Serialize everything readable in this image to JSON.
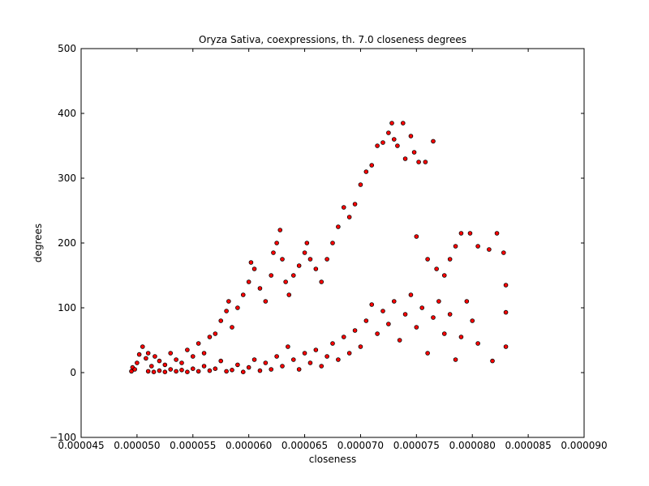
{
  "chart_data": {
    "type": "scatter",
    "title": "Oryza Sativa, coexpressions, th. 7.0 closeness degrees",
    "xlabel": "closeness",
    "ylabel": "degrees",
    "xlim": [
      4.5e-05,
      9e-05
    ],
    "ylim": [
      -100,
      500
    ],
    "x_ticks": [
      4.5e-05,
      5e-05,
      5.5e-05,
      6e-05,
      6.5e-05,
      7e-05,
      7.5e-05,
      8e-05,
      8.5e-05,
      9e-05
    ],
    "x_tick_labels": [
      "0.000045",
      "0.000050",
      "0.000055",
      "0.000060",
      "0.000065",
      "0.000070",
      "0.000075",
      "0.000080",
      "0.000085",
      "0.000090"
    ],
    "y_ticks": [
      -100,
      0,
      100,
      200,
      300,
      400,
      500
    ],
    "y_tick_labels": [
      "−100",
      "0",
      "100",
      "200",
      "300",
      "400",
      "500"
    ],
    "grid": false,
    "legend": "none",
    "marker_color": "#ff0000",
    "marker_edge_color": "#000000",
    "points": [
      {
        "x": 4.95e-05,
        "y": 2
      },
      {
        "x": 4.96e-05,
        "y": 8
      },
      {
        "x": 4.98e-05,
        "y": 5
      },
      {
        "x": 5e-05,
        "y": 15
      },
      {
        "x": 5.02e-05,
        "y": 28
      },
      {
        "x": 5.05e-05,
        "y": 40
      },
      {
        "x": 5.08e-05,
        "y": 22
      },
      {
        "x": 5.1e-05,
        "y": 30
      },
      {
        "x": 5.13e-05,
        "y": 10
      },
      {
        "x": 5.16e-05,
        "y": 25
      },
      {
        "x": 5.2e-05,
        "y": 18
      },
      {
        "x": 5.25e-05,
        "y": 12
      },
      {
        "x": 5.3e-05,
        "y": 30
      },
      {
        "x": 5.35e-05,
        "y": 20
      },
      {
        "x": 5.4e-05,
        "y": 15
      },
      {
        "x": 5.45e-05,
        "y": 35
      },
      {
        "x": 5.5e-05,
        "y": 25
      },
      {
        "x": 5.55e-05,
        "y": 45
      },
      {
        "x": 5.6e-05,
        "y": 30
      },
      {
        "x": 5.65e-05,
        "y": 55
      },
      {
        "x": 5.7e-05,
        "y": 60
      },
      {
        "x": 5.75e-05,
        "y": 80
      },
      {
        "x": 5.8e-05,
        "y": 95
      },
      {
        "x": 5.82e-05,
        "y": 110
      },
      {
        "x": 5.85e-05,
        "y": 70
      },
      {
        "x": 5.9e-05,
        "y": 100
      },
      {
        "x": 5.95e-05,
        "y": 120
      },
      {
        "x": 6e-05,
        "y": 140
      },
      {
        "x": 6.02e-05,
        "y": 170
      },
      {
        "x": 6.05e-05,
        "y": 160
      },
      {
        "x": 6.1e-05,
        "y": 130
      },
      {
        "x": 6.15e-05,
        "y": 110
      },
      {
        "x": 6.2e-05,
        "y": 150
      },
      {
        "x": 6.22e-05,
        "y": 185
      },
      {
        "x": 6.25e-05,
        "y": 200
      },
      {
        "x": 6.28e-05,
        "y": 220
      },
      {
        "x": 6.3e-05,
        "y": 175
      },
      {
        "x": 6.33e-05,
        "y": 140
      },
      {
        "x": 6.36e-05,
        "y": 120
      },
      {
        "x": 6.4e-05,
        "y": 150
      },
      {
        "x": 6.45e-05,
        "y": 165
      },
      {
        "x": 6.5e-05,
        "y": 185
      },
      {
        "x": 6.52e-05,
        "y": 200
      },
      {
        "x": 6.55e-05,
        "y": 175
      },
      {
        "x": 6.6e-05,
        "y": 160
      },
      {
        "x": 6.65e-05,
        "y": 140
      },
      {
        "x": 6.7e-05,
        "y": 175
      },
      {
        "x": 6.75e-05,
        "y": 200
      },
      {
        "x": 6.8e-05,
        "y": 225
      },
      {
        "x": 6.85e-05,
        "y": 255
      },
      {
        "x": 6.9e-05,
        "y": 240
      },
      {
        "x": 6.95e-05,
        "y": 260
      },
      {
        "x": 7e-05,
        "y": 290
      },
      {
        "x": 7.05e-05,
        "y": 310
      },
      {
        "x": 7.1e-05,
        "y": 320
      },
      {
        "x": 7.15e-05,
        "y": 350
      },
      {
        "x": 7.2e-05,
        "y": 355
      },
      {
        "x": 7.25e-05,
        "y": 370
      },
      {
        "x": 7.28e-05,
        "y": 385
      },
      {
        "x": 7.3e-05,
        "y": 360
      },
      {
        "x": 7.33e-05,
        "y": 350
      },
      {
        "x": 7.38e-05,
        "y": 385
      },
      {
        "x": 7.4e-05,
        "y": 330
      },
      {
        "x": 7.45e-05,
        "y": 365
      },
      {
        "x": 7.48e-05,
        "y": 340
      },
      {
        "x": 7.52e-05,
        "y": 325
      },
      {
        "x": 7.58e-05,
        "y": 325
      },
      {
        "x": 7.65e-05,
        "y": 357
      },
      {
        "x": 7.5e-05,
        "y": 210
      },
      {
        "x": 7.6e-05,
        "y": 175
      },
      {
        "x": 7.68e-05,
        "y": 160
      },
      {
        "x": 7.75e-05,
        "y": 150
      },
      {
        "x": 7.8e-05,
        "y": 175
      },
      {
        "x": 7.85e-05,
        "y": 195
      },
      {
        "x": 7.9e-05,
        "y": 215
      },
      {
        "x": 7.98e-05,
        "y": 215
      },
      {
        "x": 8.05e-05,
        "y": 195
      },
      {
        "x": 8.15e-05,
        "y": 190
      },
      {
        "x": 8.22e-05,
        "y": 215
      },
      {
        "x": 8.28e-05,
        "y": 185
      },
      {
        "x": 8.3e-05,
        "y": 135
      },
      {
        "x": 8.3e-05,
        "y": 93
      },
      {
        "x": 8.3e-05,
        "y": 40
      },
      {
        "x": 8.18e-05,
        "y": 18
      },
      {
        "x": 8.05e-05,
        "y": 45
      },
      {
        "x": 8e-05,
        "y": 80
      },
      {
        "x": 7.95e-05,
        "y": 110
      },
      {
        "x": 7.9e-05,
        "y": 55
      },
      {
        "x": 7.85e-05,
        "y": 20
      },
      {
        "x": 7.8e-05,
        "y": 90
      },
      {
        "x": 7.75e-05,
        "y": 60
      },
      {
        "x": 7.7e-05,
        "y": 110
      },
      {
        "x": 7.65e-05,
        "y": 85
      },
      {
        "x": 7.6e-05,
        "y": 30
      },
      {
        "x": 7.55e-05,
        "y": 100
      },
      {
        "x": 7.5e-05,
        "y": 70
      },
      {
        "x": 7.45e-05,
        "y": 120
      },
      {
        "x": 7.4e-05,
        "y": 90
      },
      {
        "x": 7.35e-05,
        "y": 50
      },
      {
        "x": 7.3e-05,
        "y": 110
      },
      {
        "x": 7.25e-05,
        "y": 75
      },
      {
        "x": 7.2e-05,
        "y": 95
      },
      {
        "x": 7.15e-05,
        "y": 60
      },
      {
        "x": 7.1e-05,
        "y": 105
      },
      {
        "x": 7.05e-05,
        "y": 80
      },
      {
        "x": 7e-05,
        "y": 40
      },
      {
        "x": 6.95e-05,
        "y": 65
      },
      {
        "x": 6.9e-05,
        "y": 30
      },
      {
        "x": 6.85e-05,
        "y": 55
      },
      {
        "x": 6.8e-05,
        "y": 20
      },
      {
        "x": 6.75e-05,
        "y": 45
      },
      {
        "x": 6.7e-05,
        "y": 25
      },
      {
        "x": 6.65e-05,
        "y": 10
      },
      {
        "x": 6.6e-05,
        "y": 35
      },
      {
        "x": 6.55e-05,
        "y": 15
      },
      {
        "x": 6.5e-05,
        "y": 30
      },
      {
        "x": 6.45e-05,
        "y": 5
      },
      {
        "x": 6.4e-05,
        "y": 20
      },
      {
        "x": 6.35e-05,
        "y": 40
      },
      {
        "x": 6.3e-05,
        "y": 10
      },
      {
        "x": 6.25e-05,
        "y": 25
      },
      {
        "x": 6.2e-05,
        "y": 5
      },
      {
        "x": 6.15e-05,
        "y": 15
      },
      {
        "x": 6.1e-05,
        "y": 3
      },
      {
        "x": 6.05e-05,
        "y": 20
      },
      {
        "x": 6e-05,
        "y": 8
      },
      {
        "x": 5.95e-05,
        "y": 1
      },
      {
        "x": 5.9e-05,
        "y": 12
      },
      {
        "x": 5.85e-05,
        "y": 4
      },
      {
        "x": 5.8e-05,
        "y": 2
      },
      {
        "x": 5.75e-05,
        "y": 18
      },
      {
        "x": 5.7e-05,
        "y": 6
      },
      {
        "x": 5.65e-05,
        "y": 3
      },
      {
        "x": 5.6e-05,
        "y": 10
      },
      {
        "x": 5.55e-05,
        "y": 2
      },
      {
        "x": 5.5e-05,
        "y": 6
      },
      {
        "x": 5.45e-05,
        "y": 1
      },
      {
        "x": 5.4e-05,
        "y": 4
      },
      {
        "x": 5.35e-05,
        "y": 2
      },
      {
        "x": 5.3e-05,
        "y": 5
      },
      {
        "x": 5.25e-05,
        "y": 1
      },
      {
        "x": 5.2e-05,
        "y": 3
      },
      {
        "x": 5.15e-05,
        "y": 1
      },
      {
        "x": 5.1e-05,
        "y": 2
      }
    ]
  }
}
